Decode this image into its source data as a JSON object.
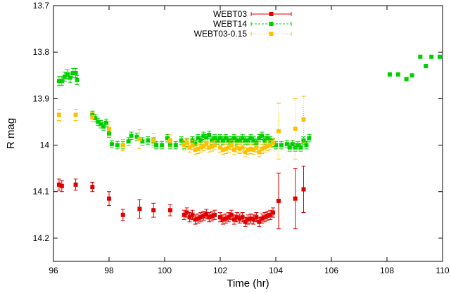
{
  "chart_data": {
    "type": "scatter",
    "title": "",
    "xlabel": "Time (hr)",
    "ylabel": "R mag",
    "xlim": [
      96,
      110
    ],
    "ylim": [
      13.7,
      14.25
    ],
    "y_inverted": true,
    "x_ticks": [
      "96",
      "98",
      "100",
      "102",
      "104",
      "106",
      "108",
      "110"
    ],
    "y_ticks": [
      "13.7",
      "13.8",
      "13.9",
      "14",
      "14.1",
      "14.2"
    ],
    "grid": false,
    "legend_position": "top-center",
    "series": [
      {
        "name": "WEBT03",
        "color": "#e00000",
        "error_bar_style": "solid",
        "points": [
          [
            96.2,
            14.085,
            0.012
          ],
          [
            96.3,
            14.088,
            0.012
          ],
          [
            96.8,
            14.085,
            0.012
          ],
          [
            97.4,
            14.09,
            0.01
          ],
          [
            98.0,
            14.115,
            0.015
          ],
          [
            98.5,
            14.15,
            0.012
          ],
          [
            99.1,
            14.137,
            0.02
          ],
          [
            99.6,
            14.14,
            0.015
          ],
          [
            100.2,
            14.14,
            0.012
          ],
          [
            100.7,
            14.15,
            0.01
          ],
          [
            100.8,
            14.145,
            0.01
          ],
          [
            100.9,
            14.155,
            0.01
          ],
          [
            101.0,
            14.15,
            0.01
          ],
          [
            101.1,
            14.16,
            0.01
          ],
          [
            101.2,
            14.158,
            0.01
          ],
          [
            101.3,
            14.155,
            0.01
          ],
          [
            101.4,
            14.152,
            0.01
          ],
          [
            101.5,
            14.148,
            0.01
          ],
          [
            101.6,
            14.155,
            0.01
          ],
          [
            101.7,
            14.153,
            0.01
          ],
          [
            101.8,
            14.15,
            0.01
          ],
          [
            102.0,
            14.155,
            0.01
          ],
          [
            102.1,
            14.16,
            0.01
          ],
          [
            102.2,
            14.158,
            0.01
          ],
          [
            102.3,
            14.155,
            0.01
          ],
          [
            102.4,
            14.15,
            0.01
          ],
          [
            102.5,
            14.16,
            0.01
          ],
          [
            102.6,
            14.155,
            0.01
          ],
          [
            102.7,
            14.158,
            0.01
          ],
          [
            102.8,
            14.155,
            0.01
          ],
          [
            102.9,
            14.165,
            0.01
          ],
          [
            103.0,
            14.16,
            0.01
          ],
          [
            103.1,
            14.158,
            0.01
          ],
          [
            103.2,
            14.16,
            0.01
          ],
          [
            103.3,
            14.155,
            0.01
          ],
          [
            103.4,
            14.165,
            0.01
          ],
          [
            103.5,
            14.158,
            0.01
          ],
          [
            103.6,
            14.155,
            0.01
          ],
          [
            103.7,
            14.152,
            0.01
          ],
          [
            103.8,
            14.15,
            0.01
          ],
          [
            103.9,
            14.145,
            0.01
          ],
          [
            104.1,
            14.12,
            0.06
          ],
          [
            104.7,
            14.115,
            0.065
          ],
          [
            105.0,
            14.095,
            0.05
          ]
        ]
      },
      {
        "name": "WEBT14",
        "color": "#00d000",
        "error_bar_style": "dashed",
        "points": [
          [
            96.2,
            13.862,
            0.01
          ],
          [
            96.3,
            13.862,
            0.01
          ],
          [
            96.4,
            13.853,
            0.01
          ],
          [
            96.5,
            13.848,
            0.01
          ],
          [
            96.6,
            13.855,
            0.01
          ],
          [
            96.7,
            13.845,
            0.01
          ],
          [
            96.8,
            13.845,
            0.01
          ],
          [
            96.85,
            13.86,
            0.01
          ],
          [
            97.4,
            13.935,
            0.008
          ],
          [
            97.5,
            13.942,
            0.008
          ],
          [
            97.6,
            13.95,
            0.008
          ],
          [
            97.7,
            13.955,
            0.008
          ],
          [
            97.8,
            13.96,
            0.008
          ],
          [
            97.9,
            13.952,
            0.008
          ],
          [
            98.0,
            13.975,
            0.008
          ],
          [
            98.1,
            13.998,
            0.008
          ],
          [
            98.3,
            14.0,
            0.008
          ],
          [
            98.5,
            14.0,
            0.008
          ],
          [
            98.7,
            13.992,
            0.008
          ],
          [
            98.8,
            13.98,
            0.008
          ],
          [
            99.0,
            13.982,
            0.008
          ],
          [
            99.2,
            13.992,
            0.008
          ],
          [
            99.4,
            13.99,
            0.008
          ],
          [
            99.6,
            13.992,
            0.008
          ],
          [
            99.7,
            14.0,
            0.008
          ],
          [
            99.9,
            14.0,
            0.008
          ],
          [
            100.1,
            13.985,
            0.008
          ],
          [
            100.2,
            14.0,
            0.008
          ],
          [
            100.4,
            14.0,
            0.008
          ],
          [
            100.6,
            13.99,
            0.008
          ],
          [
            100.7,
            14.0,
            0.008
          ],
          [
            100.8,
            13.995,
            0.008
          ],
          [
            101.0,
            13.99,
            0.008
          ],
          [
            101.1,
            13.998,
            0.008
          ],
          [
            101.2,
            13.985,
            0.008
          ],
          [
            101.3,
            13.99,
            0.008
          ],
          [
            101.4,
            13.98,
            0.008
          ],
          [
            101.5,
            13.985,
            0.008
          ],
          [
            101.6,
            13.978,
            0.008
          ],
          [
            101.7,
            13.99,
            0.008
          ],
          [
            101.8,
            13.985,
            0.008
          ],
          [
            101.9,
            13.99,
            0.008
          ],
          [
            102.0,
            13.985,
            0.008
          ],
          [
            102.1,
            13.99,
            0.008
          ],
          [
            102.2,
            13.985,
            0.008
          ],
          [
            102.3,
            13.99,
            0.008
          ],
          [
            102.4,
            13.99,
            0.008
          ],
          [
            102.5,
            13.985,
            0.008
          ],
          [
            102.6,
            13.99,
            0.008
          ],
          [
            102.7,
            13.99,
            0.008
          ],
          [
            102.8,
            13.985,
            0.008
          ],
          [
            102.9,
            13.99,
            0.008
          ],
          [
            103.0,
            13.99,
            0.008
          ],
          [
            103.1,
            13.985,
            0.008
          ],
          [
            103.2,
            13.99,
            0.008
          ],
          [
            103.3,
            13.995,
            0.008
          ],
          [
            103.4,
            13.985,
            0.008
          ],
          [
            103.5,
            13.98,
            0.008
          ],
          [
            103.6,
            13.99,
            0.008
          ],
          [
            103.7,
            13.985,
            0.008
          ],
          [
            103.8,
            13.99,
            0.008
          ],
          [
            103.9,
            13.995,
            0.008
          ],
          [
            104.0,
            14.0,
            0.008
          ],
          [
            104.2,
            14.0,
            0.008
          ],
          [
            104.4,
            13.998,
            0.008
          ],
          [
            104.5,
            14.005,
            0.008
          ],
          [
            104.6,
            13.998,
            0.008
          ],
          [
            104.7,
            14.005,
            0.008
          ],
          [
            104.8,
            14.0,
            0.008
          ],
          [
            104.9,
            14.005,
            0.008
          ],
          [
            105.0,
            13.99,
            0.008
          ],
          [
            105.1,
            14.0,
            0.008
          ],
          [
            105.2,
            13.985,
            0.008
          ],
          [
            108.1,
            13.848,
            0.0
          ],
          [
            108.4,
            13.848,
            0.0
          ],
          [
            108.7,
            13.858,
            0.0
          ],
          [
            108.9,
            13.85,
            0.0
          ],
          [
            109.2,
            13.81,
            0.0
          ],
          [
            109.4,
            13.83,
            0.0
          ],
          [
            109.6,
            13.81,
            0.0
          ],
          [
            109.9,
            13.81,
            0.0
          ]
        ]
      },
      {
        "name": "WEBT03-0.15",
        "color": "#ffc000",
        "error_bar_style": "dotted",
        "points": [
          [
            96.2,
            13.935,
            0.012
          ],
          [
            96.8,
            13.935,
            0.012
          ],
          [
            97.4,
            13.94,
            0.01
          ],
          [
            98.0,
            13.965,
            0.015
          ],
          [
            98.5,
            14.0,
            0.012
          ],
          [
            99.1,
            13.987,
            0.02
          ],
          [
            99.6,
            13.99,
            0.015
          ],
          [
            100.2,
            13.99,
            0.012
          ],
          [
            100.7,
            14.0,
            0.01
          ],
          [
            100.8,
            13.995,
            0.01
          ],
          [
            100.9,
            14.005,
            0.01
          ],
          [
            101.0,
            14.0,
            0.01
          ],
          [
            101.1,
            14.01,
            0.01
          ],
          [
            101.2,
            14.008,
            0.01
          ],
          [
            101.3,
            14.005,
            0.01
          ],
          [
            101.4,
            14.002,
            0.01
          ],
          [
            101.5,
            13.998,
            0.01
          ],
          [
            101.6,
            14.005,
            0.01
          ],
          [
            101.7,
            14.003,
            0.01
          ],
          [
            101.8,
            14.0,
            0.01
          ],
          [
            102.0,
            14.005,
            0.01
          ],
          [
            102.1,
            14.01,
            0.01
          ],
          [
            102.2,
            14.008,
            0.01
          ],
          [
            102.3,
            14.005,
            0.01
          ],
          [
            102.4,
            14.0,
            0.01
          ],
          [
            102.5,
            14.01,
            0.01
          ],
          [
            102.6,
            14.005,
            0.01
          ],
          [
            102.7,
            14.008,
            0.01
          ],
          [
            102.8,
            14.005,
            0.01
          ],
          [
            102.9,
            14.015,
            0.01
          ],
          [
            103.0,
            14.01,
            0.01
          ],
          [
            103.1,
            14.008,
            0.01
          ],
          [
            103.2,
            14.01,
            0.01
          ],
          [
            103.3,
            14.005,
            0.01
          ],
          [
            103.4,
            14.015,
            0.01
          ],
          [
            103.5,
            14.008,
            0.01
          ],
          [
            103.6,
            14.005,
            0.01
          ],
          [
            103.7,
            14.002,
            0.01
          ],
          [
            103.8,
            14.0,
            0.01
          ],
          [
            103.9,
            13.995,
            0.01
          ],
          [
            104.1,
            13.97,
            0.06
          ],
          [
            104.7,
            13.965,
            0.065
          ],
          [
            105.0,
            13.945,
            0.05
          ]
        ]
      }
    ]
  }
}
